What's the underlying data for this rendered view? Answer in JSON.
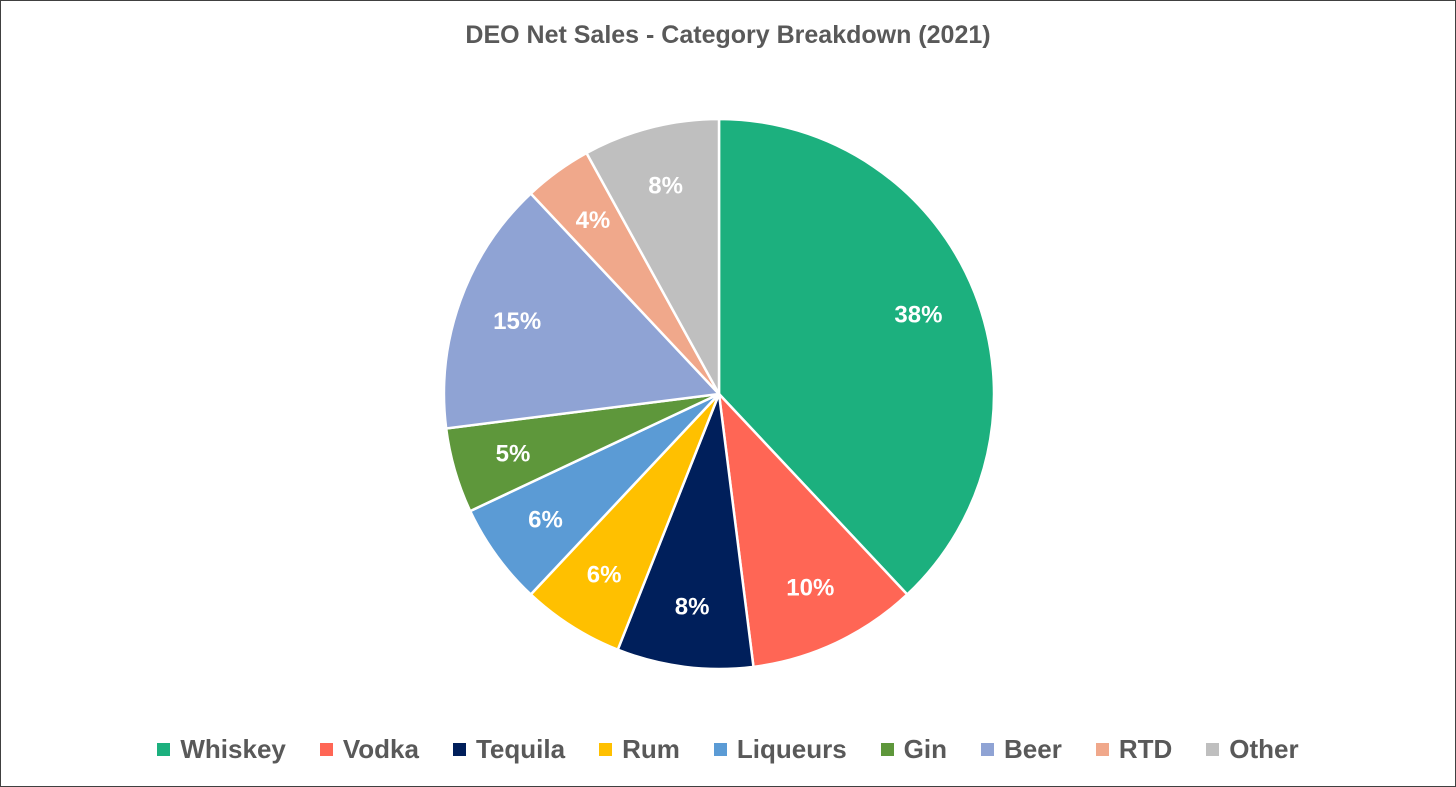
{
  "chart_data": {
    "type": "pie",
    "title": "DEO Net Sales - Category Breakdown (2021)",
    "legend_position": "bottom",
    "start_angle_deg": 0,
    "direction": "clockwise",
    "slices": [
      {
        "name": "Whiskey",
        "value": 38,
        "label": "38%",
        "color": "#1CB07E"
      },
      {
        "name": "Vodka",
        "value": 10,
        "label": "10%",
        "color": "#FF6655"
      },
      {
        "name": "Tequila",
        "value": 8,
        "label": "8%",
        "color": "#001F5B"
      },
      {
        "name": "Rum",
        "value": 6,
        "label": "6%",
        "color": "#FFC000"
      },
      {
        "name": "Liqueurs",
        "value": 6,
        "label": "6%",
        "color": "#5B9BD5"
      },
      {
        "name": "Gin",
        "value": 5,
        "label": "5%",
        "color": "#5E973B"
      },
      {
        "name": "Beer",
        "value": 15,
        "label": "15%",
        "color": "#8FA3D4"
      },
      {
        "name": "RTD",
        "value": 4,
        "label": "4%",
        "color": "#F0A88B"
      },
      {
        "name": "Other",
        "value": 8,
        "label": "8%",
        "color": "#BFBFBF"
      }
    ]
  }
}
